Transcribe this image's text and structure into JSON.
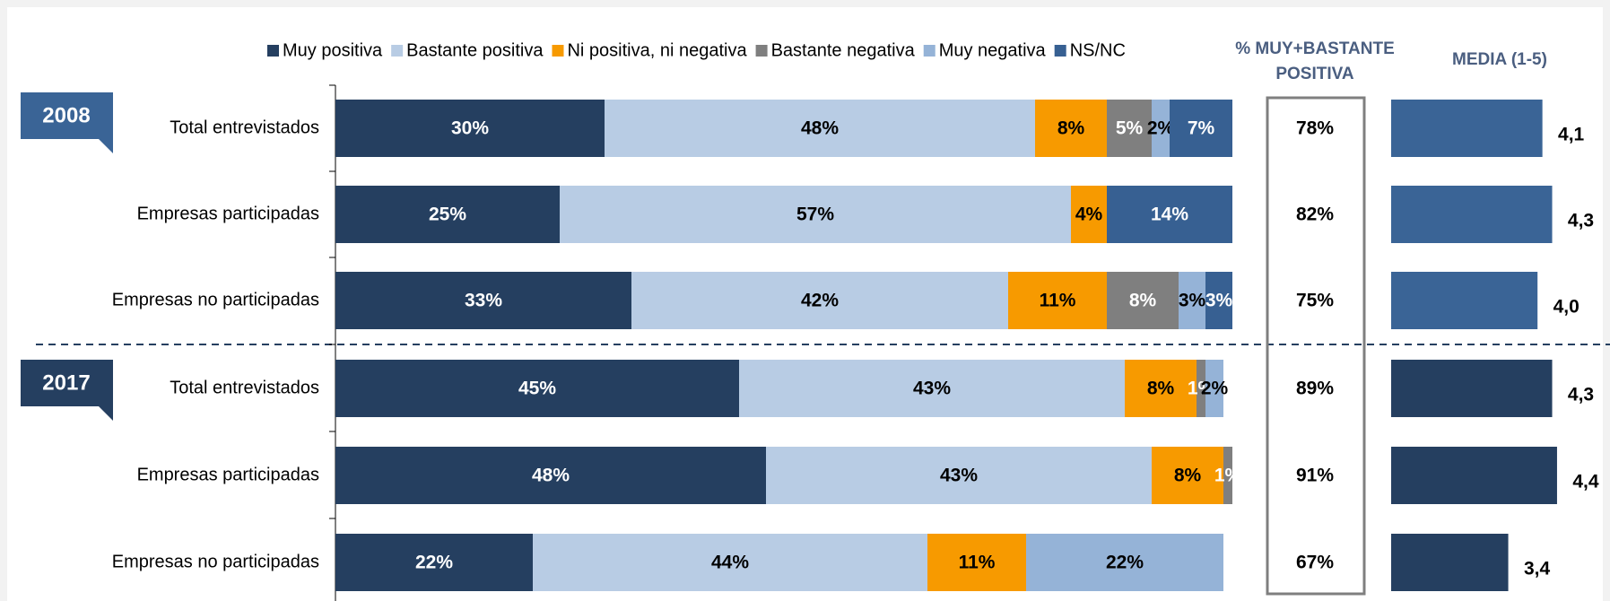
{
  "chart_data": {
    "type": "bar",
    "orientation": "horizontal",
    "stacked": true,
    "group_labels": [
      "2008",
      "2017"
    ],
    "categories": [
      "Total entrevistados",
      "Empresas participadas",
      "Empresas no participadas",
      "Total entrevistados",
      "Empresas participadas",
      "Empresas no participadas"
    ],
    "xlim": [
      0,
      100
    ],
    "series": [
      {
        "name": "Muy positiva",
        "color": "#253f60",
        "label_color": "#ffffff",
        "values": [
          30,
          25,
          33,
          45,
          48,
          22
        ],
        "value_labels": [
          "30%",
          "25%",
          "33%",
          "45%",
          "48%",
          "22%"
        ]
      },
      {
        "name": "Bastante positiva",
        "color": "#b8cce4",
        "label_color": "#000000",
        "values": [
          48,
          57,
          42,
          43,
          43,
          44
        ],
        "value_labels": [
          "48%",
          "57%",
          "42%",
          "43%",
          "43%",
          "44%"
        ]
      },
      {
        "name": "Ni positiva, ni negativa",
        "color": "#f79a00",
        "label_color": "#000000",
        "values": [
          8,
          4,
          11,
          8,
          8,
          11
        ],
        "value_labels": [
          "8%",
          "4%",
          "11%",
          "8%",
          "8%",
          "11%"
        ]
      },
      {
        "name": "Bastante negativa",
        "color": "#7f7f7f",
        "label_color": "#ffffff",
        "values": [
          5,
          null,
          8,
          1,
          1,
          null
        ],
        "value_labels": [
          "5%",
          null,
          "8%",
          "1%",
          "1%",
          null
        ]
      },
      {
        "name": "Muy negativa",
        "color": "#95b3d7",
        "label_color": "#000000",
        "values": [
          2,
          null,
          3,
          2,
          null,
          22
        ],
        "value_labels": [
          "2%",
          null,
          "3%",
          "2%",
          null,
          "22%"
        ]
      },
      {
        "name": "NS/NC",
        "color": "#376092",
        "label_color": "#ffffff",
        "values": [
          7,
          14,
          3,
          null,
          null,
          null
        ],
        "value_labels": [
          "7%",
          "14%",
          "3%",
          null,
          null,
          null
        ]
      }
    ],
    "summary": {
      "title_lines": [
        "% MUY+BASTANTE",
        "POSITIVA"
      ],
      "values": [
        78,
        82,
        75,
        89,
        91,
        67
      ],
      "value_labels": [
        "78%",
        "82%",
        "75%",
        "89%",
        "91%",
        "67%"
      ]
    },
    "mean": {
      "title": "MEDIA (1-5)",
      "xlim": [
        1,
        5
      ],
      "group_colors": [
        "#3a6496",
        "#253f60"
      ],
      "values": [
        4.1,
        4.3,
        4.0,
        4.3,
        4.4,
        3.4
      ],
      "value_labels": [
        "4,1",
        "4,3",
        "4,0",
        "4,3",
        "4,4",
        "3,4"
      ]
    }
  }
}
